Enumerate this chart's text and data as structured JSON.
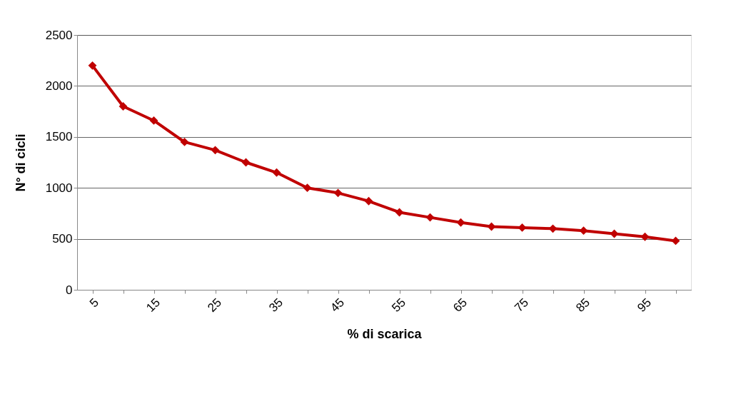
{
  "chart_data": {
    "type": "line",
    "xlabel": "% di scarica",
    "ylabel": "N° di cicli",
    "categories": [
      "5",
      null,
      "15",
      null,
      "25",
      null,
      "35",
      null,
      "45",
      null,
      "55",
      null,
      "65",
      null,
      "75",
      null,
      "85",
      null,
      "95",
      null
    ],
    "series": [
      {
        "color": "#c00000",
        "values": [
          2200,
          1800,
          1660,
          1450,
          1370,
          1250,
          1150,
          1000,
          950,
          870,
          760,
          710,
          660,
          620,
          610,
          600,
          580,
          550,
          520,
          480
        ]
      }
    ],
    "ylim": [
      0,
      2500
    ],
    "yticks": [
      0,
      500,
      1000,
      1500,
      2000,
      2500
    ],
    "grid": "y",
    "marker": "diamond",
    "line_style": "solid"
  }
}
